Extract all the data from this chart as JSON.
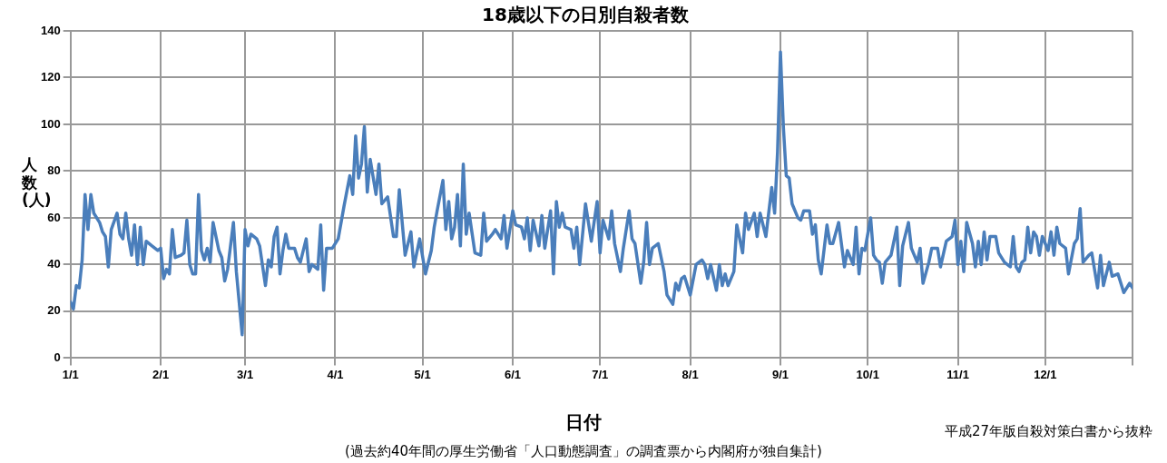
{
  "chart_data": {
    "type": "line",
    "title": "18歳以下の日別自殺者数",
    "xlabel": "日付",
    "ylabel": "人数(人)",
    "annotations": [
      "平成27年版自殺対策白書から抜粋",
      "(過去約40年間の厚生労働省「人口動態調査」の調査票から内閣府が独自集計)"
    ],
    "xlim": [
      "--01-01",
      "--12-31"
    ],
    "xticks": [
      {
        "value": "--01-01",
        "label": "1/1"
      },
      {
        "value": "--02-01",
        "label": "2/1"
      },
      {
        "value": "--03-01",
        "label": "3/1"
      },
      {
        "value": "--04-01",
        "label": "4/1"
      },
      {
        "value": "--05-01",
        "label": "5/1"
      },
      {
        "value": "--06-01",
        "label": "6/1"
      },
      {
        "value": "--07-01",
        "label": "7/1"
      },
      {
        "value": "--08-01",
        "label": "8/1"
      },
      {
        "value": "--09-01",
        "label": "9/1"
      },
      {
        "value": "--10-01",
        "label": "10/1"
      },
      {
        "value": "--11-01",
        "label": "11/1"
      },
      {
        "value": "--12-01",
        "label": "12/1"
      },
      {
        "value": "--12-31",
        "label": null
      }
    ],
    "ylim": [
      0,
      140
    ],
    "yticks": [
      0,
      20,
      40,
      60,
      80,
      100,
      120,
      140
    ],
    "grid": true,
    "legend": false,
    "marker": "none",
    "line_style": "solid",
    "series": [
      {
        "color": "#4a7ebb",
        "x": [
          "--01-01",
          "--01-02",
          "--01-03",
          "--01-04",
          "--01-05",
          "--01-06",
          "--01-07",
          "--01-08",
          "--01-09",
          "--01-11",
          "--01-12",
          "--01-13",
          "--01-14",
          "--01-15",
          "--01-17",
          "--01-18",
          "--01-19",
          "--01-20",
          "--01-21",
          "--01-22",
          "--01-23",
          "--01-24",
          "--01-25",
          "--01-26",
          "--01-27",
          "--01-29",
          "--01-31",
          "--02-01",
          "--02-02",
          "--02-03",
          "--02-04",
          "--02-05",
          "--02-06",
          "--02-08",
          "--02-09",
          "--02-10",
          "--02-11",
          "--02-12",
          "--02-13",
          "--02-14",
          "--02-15",
          "--02-16",
          "--02-17",
          "--02-18",
          "--02-19",
          "--02-20",
          "--02-21",
          "--02-22",
          "--02-23",
          "--02-24",
          "--02-26",
          "--02-27",
          "--02-29",
          "--03-01",
          "--03-02",
          "--03-03",
          "--03-05",
          "--03-06",
          "--03-08",
          "--03-09",
          "--03-10",
          "--03-11",
          "--03-12",
          "--03-13",
          "--03-14",
          "--03-15",
          "--03-16",
          "--03-18",
          "--03-19",
          "--03-20",
          "--03-22",
          "--03-23",
          "--03-24",
          "--03-26",
          "--03-27",
          "--03-28",
          "--03-29",
          "--03-31",
          "--04-02",
          "--04-04",
          "--04-06",
          "--04-07",
          "--04-08",
          "--04-09",
          "--04-10",
          "--04-11",
          "--04-12",
          "--04-13",
          "--04-15",
          "--04-16",
          "--04-17",
          "--04-19",
          "--04-21",
          "--04-22",
          "--04-23",
          "--04-25",
          "--04-27",
          "--04-28",
          "--04-30",
          "--05-02",
          "--05-04",
          "--05-05",
          "--05-06",
          "--05-08",
          "--05-09",
          "--05-10",
          "--05-11",
          "--05-12",
          "--05-13",
          "--05-14",
          "--05-15",
          "--05-16",
          "--05-17",
          "--05-19",
          "--05-21",
          "--05-22",
          "--05-23",
          "--05-25",
          "--05-26",
          "--05-28",
          "--05-29",
          "--05-30",
          "--06-01",
          "--06-02",
          "--06-04",
          "--06-05",
          "--06-06",
          "--06-07",
          "--06-08",
          "--06-10",
          "--06-11",
          "--06-12",
          "--06-14",
          "--06-15",
          "--06-16",
          "--06-17",
          "--06-18",
          "--06-19",
          "--06-21",
          "--06-22",
          "--06-23",
          "--06-24",
          "--06-26",
          "--06-27",
          "--06-28",
          "--06-30",
          "--07-01",
          "--07-02",
          "--07-04",
          "--07-05",
          "--07-06",
          "--07-08",
          "--07-09",
          "--07-11",
          "--07-12",
          "--07-13",
          "--07-15",
          "--07-16",
          "--07-17",
          "--07-18",
          "--07-19",
          "--07-21",
          "--07-23",
          "--07-24",
          "--07-26",
          "--07-27",
          "--07-28",
          "--07-29",
          "--07-30",
          "--08-01",
          "--08-03",
          "--08-05",
          "--08-06",
          "--08-07",
          "--08-08",
          "--08-10",
          "--08-11",
          "--08-12",
          "--08-13",
          "--08-14",
          "--08-16",
          "--08-17",
          "--08-19",
          "--08-20",
          "--08-21",
          "--08-23",
          "--08-24",
          "--08-25",
          "--08-27",
          "--08-29",
          "--08-30",
          "--08-31",
          "--09-01",
          "--09-02",
          "--09-03",
          "--09-04",
          "--09-05",
          "--09-07",
          "--09-08",
          "--09-09",
          "--09-11",
          "--09-12",
          "--09-13",
          "--09-14",
          "--09-15",
          "--09-17",
          "--09-18",
          "--09-19",
          "--09-21",
          "--09-23",
          "--09-24",
          "--09-26",
          "--09-27",
          "--09-28",
          "--09-29",
          "--09-30",
          "--10-02",
          "--10-03",
          "--10-04",
          "--10-05",
          "--10-06",
          "--10-07",
          "--10-09",
          "--10-11",
          "--10-12",
          "--10-13",
          "--10-15",
          "--10-16",
          "--10-18",
          "--10-19",
          "--10-20",
          "--10-22",
          "--10-23",
          "--10-25",
          "--10-26",
          "--10-28",
          "--10-30",
          "--10-31",
          "--11-01",
          "--11-02",
          "--11-03",
          "--11-04",
          "--11-06",
          "--11-07",
          "--11-08",
          "--11-09",
          "--11-10",
          "--11-11",
          "--11-12",
          "--11-14",
          "--11-15",
          "--11-17",
          "--11-19",
          "--11-20",
          "--11-21",
          "--11-22",
          "--11-23",
          "--11-24",
          "--11-25",
          "--11-26",
          "--11-27",
          "--11-28",
          "--11-29",
          "--11-30",
          "--12-02",
          "--12-03",
          "--12-04",
          "--12-05",
          "--12-06",
          "--12-08",
          "--12-09",
          "--12-11",
          "--12-12",
          "--12-13",
          "--12-14",
          "--12-16",
          "--12-17",
          "--12-19",
          "--12-20",
          "--12-21",
          "--12-23",
          "--12-24",
          "--12-26",
          "--12-28",
          "--12-30",
          "--12-31"
        ],
        "values": [
          24,
          21,
          31,
          30,
          42,
          70,
          55,
          70,
          62,
          58,
          54,
          52,
          39,
          55,
          62,
          53,
          51,
          62,
          51,
          44,
          57,
          40,
          56,
          40,
          50,
          48,
          46,
          47,
          34,
          38,
          36,
          55,
          43,
          44,
          45,
          59,
          40,
          36,
          36,
          70,
          46,
          42,
          47,
          41,
          58,
          52,
          46,
          43,
          33,
          38,
          58,
          37,
          10,
          55,
          48,
          53,
          51,
          48,
          31,
          42,
          39,
          52,
          56,
          36,
          46,
          53,
          47,
          47,
          43,
          41,
          51,
          37,
          40,
          38,
          57,
          29,
          47,
          47,
          51,
          65,
          78,
          70,
          95,
          77,
          83,
          99,
          71,
          85,
          70,
          83,
          66,
          69,
          52,
          52,
          72,
          44,
          54,
          39,
          51,
          36,
          46,
          56,
          63,
          76,
          55,
          67,
          51,
          56,
          70,
          48,
          83,
          53,
          62,
          45,
          44,
          62,
          50,
          53,
          55,
          51,
          61,
          47,
          63,
          57,
          56,
          51,
          60,
          46,
          59,
          48,
          61,
          47,
          63,
          36,
          67,
          56,
          62,
          56,
          55,
          47,
          56,
          40,
          66,
          58,
          50,
          67,
          45,
          59,
          51,
          63,
          49,
          37,
          47,
          63,
          51,
          49,
          32,
          41,
          58,
          40,
          47,
          49,
          37,
          27,
          23,
          32,
          29,
          34,
          35,
          27,
          40,
          42,
          40,
          34,
          40,
          29,
          40,
          31,
          36,
          31,
          37,
          57,
          45,
          62,
          55,
          62,
          52,
          62,
          52,
          73,
          62,
          88,
          131,
          99,
          78,
          77,
          66,
          60,
          59,
          63,
          63,
          53,
          57,
          42,
          36,
          57,
          49,
          49,
          58,
          39,
          46,
          40,
          56,
          36,
          47,
          46,
          60,
          44,
          42,
          41,
          32,
          41,
          44,
          56,
          31,
          48,
          58,
          47,
          41,
          47,
          32,
          41,
          47,
          47,
          39,
          50,
          52,
          59,
          40,
          50,
          37,
          58,
          49,
          39,
          50,
          40,
          54,
          42,
          52,
          52,
          45,
          41,
          39,
          52,
          39,
          37,
          41,
          42,
          56,
          45,
          54,
          52,
          44,
          52,
          46,
          54,
          44,
          56,
          49,
          47,
          36,
          49,
          51,
          64,
          41,
          44,
          45,
          30,
          44,
          31,
          41,
          35,
          36,
          28,
          32,
          30
        ]
      }
    ]
  }
}
